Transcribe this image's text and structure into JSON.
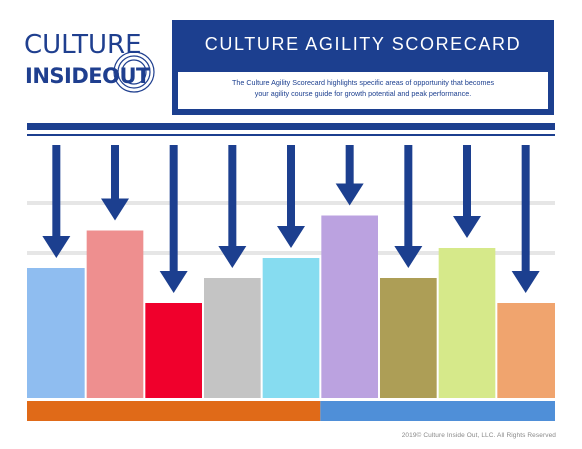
{
  "logo": {
    "line1": "CULTURE",
    "line2": "INSIDEOUT",
    "color": "#1f3f8f"
  },
  "header": {
    "title": "CULTURE AGILITY SCORECARD",
    "description_line1": "The Culture Agility Scorecard highlights specific areas of opportunity that becomes",
    "description_line2": "your agility course guide for growth potential and peak performance.",
    "background": "#1c3f8f"
  },
  "chart_data": {
    "type": "bar",
    "bars": [
      {
        "value": 0.52,
        "color": "#8fbdf0"
      },
      {
        "value": 0.67,
        "color": "#ee8f8f"
      },
      {
        "value": 0.38,
        "color": "#f0002c"
      },
      {
        "value": 0.48,
        "color": "#c4c4c4"
      },
      {
        "value": 0.56,
        "color": "#86dcf0"
      },
      {
        "value": 0.73,
        "color": "#bba2e0"
      },
      {
        "value": 0.48,
        "color": "#ad9e56"
      },
      {
        "value": 0.6,
        "color": "#d6e98a"
      },
      {
        "value": 0.38,
        "color": "#f0a46e"
      }
    ],
    "arrows_color": "#1c3f8f",
    "grid": true,
    "base_segments": [
      {
        "span": 5,
        "color": "#e06a18"
      },
      {
        "span": 4,
        "color": "#4f8fd8"
      }
    ]
  },
  "footer": {
    "copyright": "2019© Culture Inside Out, LLC. All Rights Reserved"
  }
}
